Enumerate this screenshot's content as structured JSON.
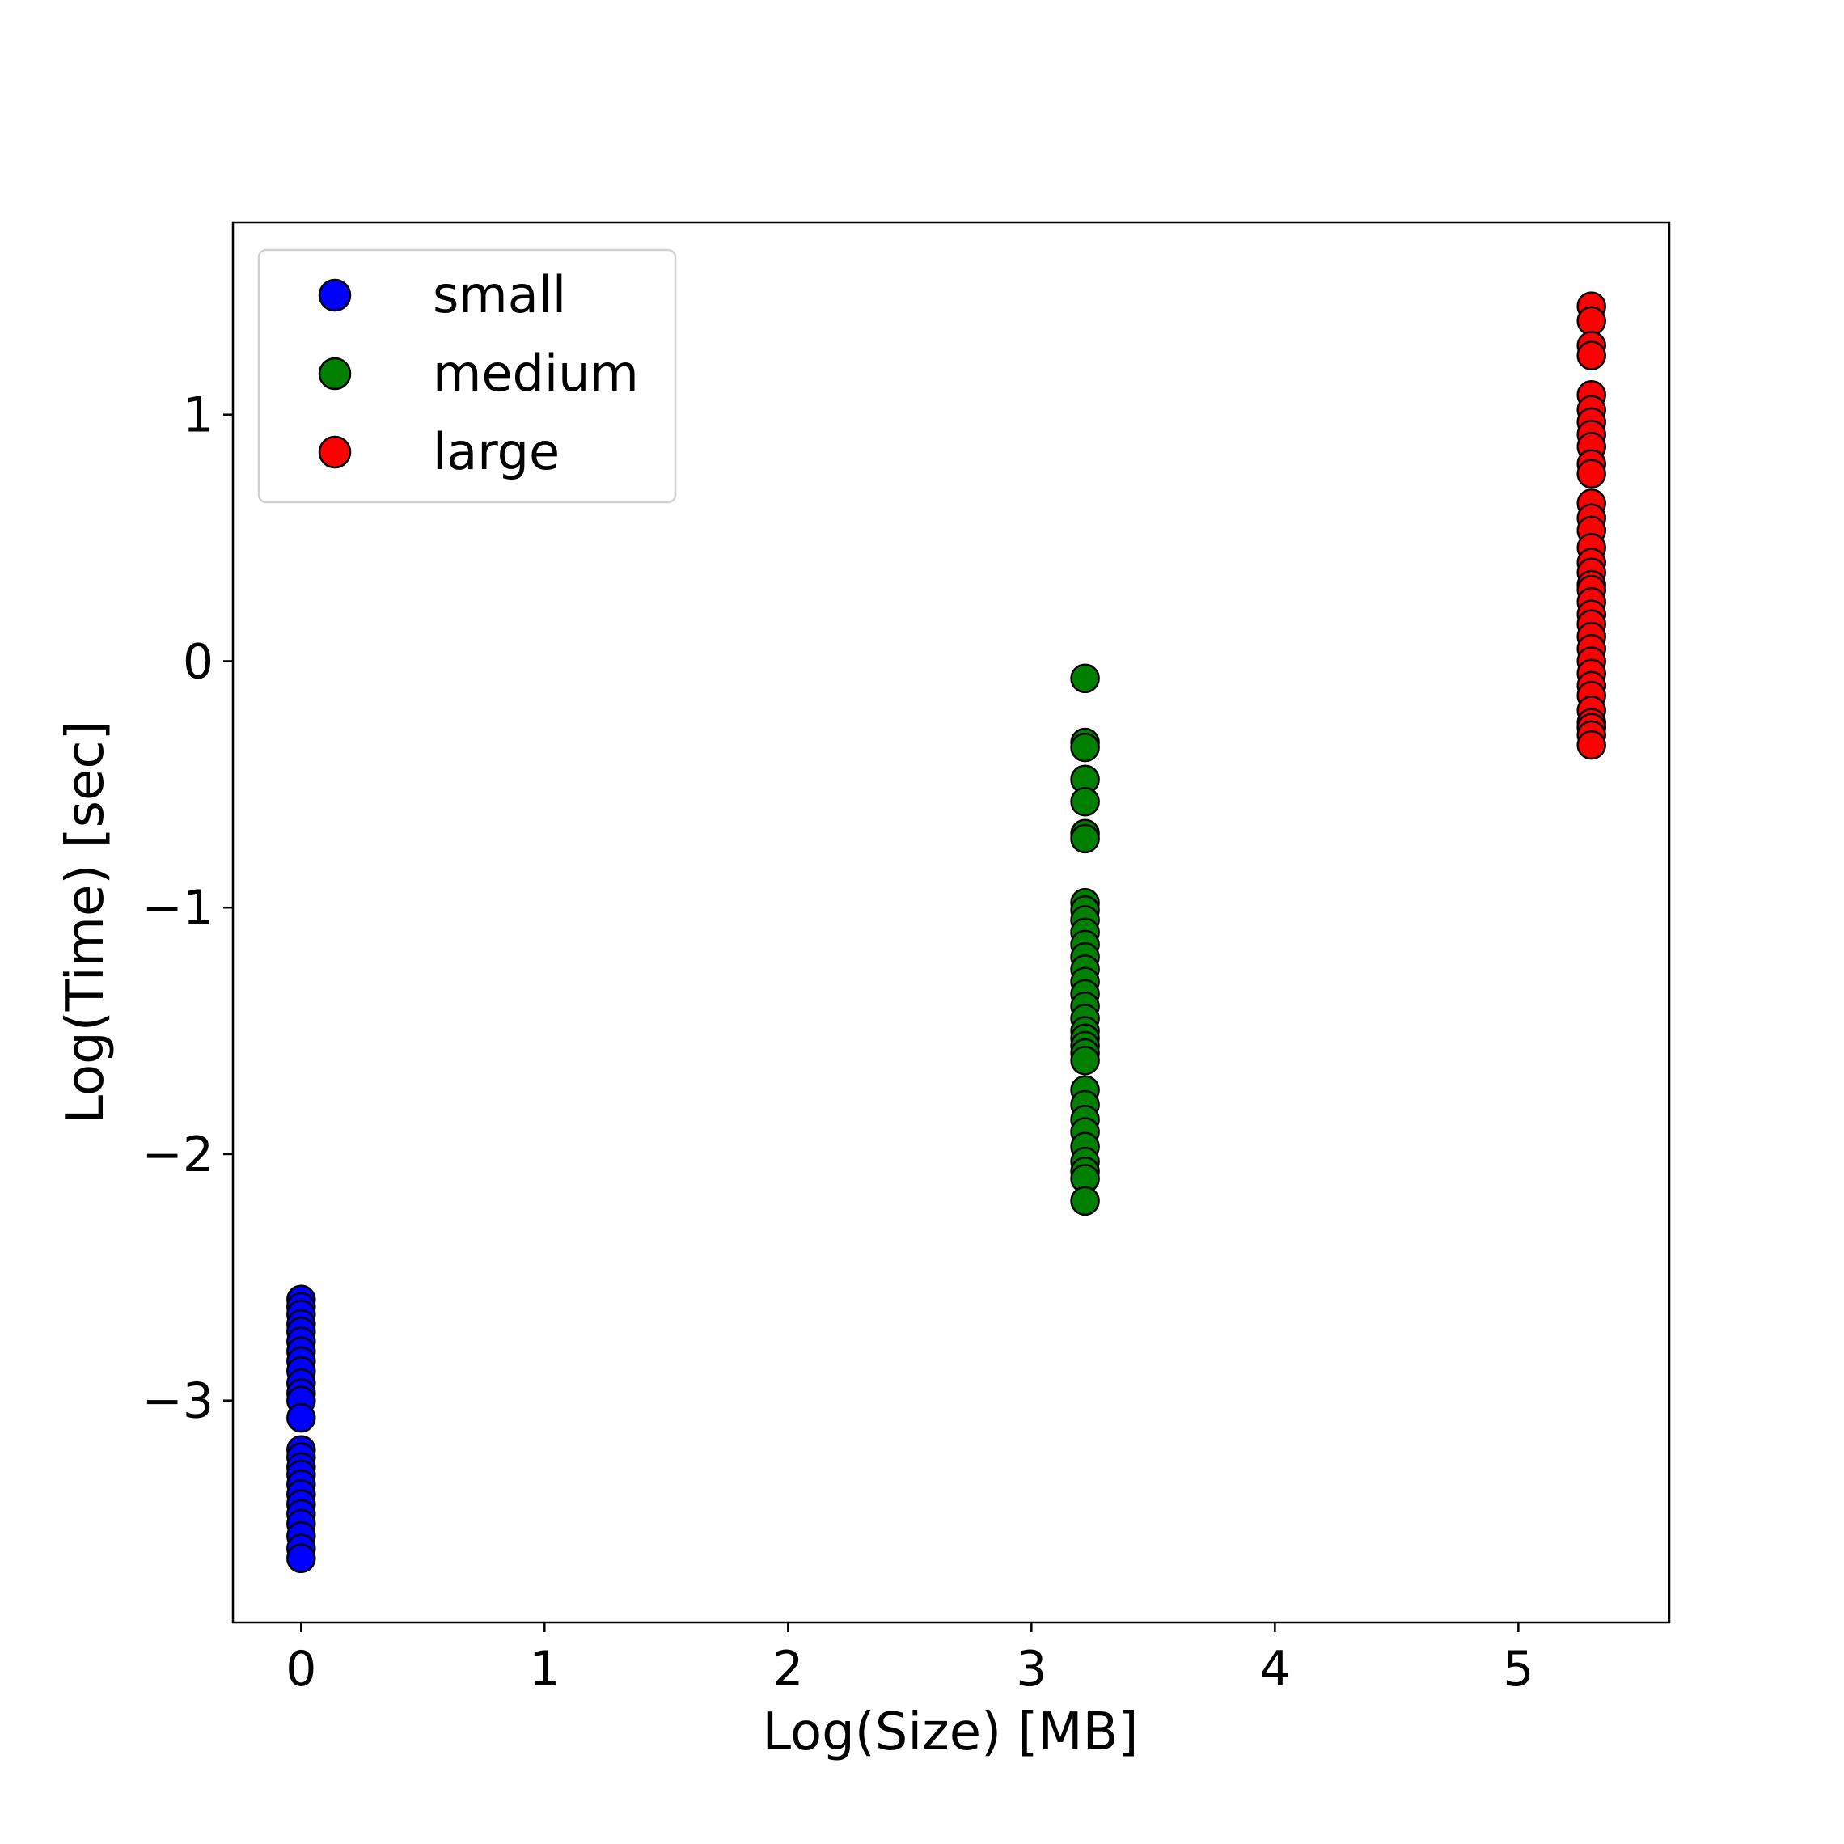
{
  "chart_data": {
    "type": "scatter",
    "title": "",
    "xlabel": "Log(Size) [MB]",
    "ylabel": "Log(Time) [sec]",
    "xlim": [
      -0.28,
      5.62
    ],
    "ylim": [
      -3.9,
      1.78
    ],
    "xticks": [
      0,
      1,
      2,
      3,
      4,
      5
    ],
    "xtick_labels": [
      "0",
      "1",
      "2",
      "3",
      "4",
      "5"
    ],
    "yticks": [
      -3,
      -2,
      -1,
      0,
      1
    ],
    "ytick_labels": [
      "−3",
      "−2",
      "−1",
      "0",
      "1"
    ],
    "grid": false,
    "legend_position": "upper-left",
    "series": [
      {
        "name": "small",
        "color": "#0000ff",
        "x": 0,
        "y": [
          -2.59,
          -2.62,
          -2.65,
          -2.69,
          -2.72,
          -2.76,
          -2.8,
          -2.84,
          -2.88,
          -2.93,
          -2.97,
          -3.0,
          -3.07,
          -3.2,
          -3.23,
          -3.27,
          -3.3,
          -3.34,
          -3.38,
          -3.42,
          -3.46,
          -3.5,
          -3.55,
          -3.6,
          -3.64
        ]
      },
      {
        "name": "medium",
        "color": "#008000",
        "x": 3.22,
        "y": [
          -0.07,
          -0.33,
          -0.35,
          -0.48,
          -0.57,
          -0.7,
          -0.72,
          -0.98,
          -1.01,
          -1.05,
          -1.1,
          -1.15,
          -1.2,
          -1.25,
          -1.3,
          -1.35,
          -1.4,
          -1.45,
          -1.5,
          -1.53,
          -1.56,
          -1.59,
          -1.62,
          -1.74,
          -1.8,
          -1.86,
          -1.91,
          -1.97,
          -2.03,
          -2.07,
          -2.1,
          -2.19
        ]
      },
      {
        "name": "large",
        "color": "#ff0000",
        "x": 5.3,
        "y": [
          1.44,
          1.38,
          1.28,
          1.24,
          1.08,
          1.02,
          0.97,
          0.92,
          0.87,
          0.8,
          0.76,
          0.64,
          0.58,
          0.53,
          0.46,
          0.4,
          0.36,
          0.31,
          0.29,
          0.24,
          0.19,
          0.15,
          0.1,
          0.05,
          0.0,
          -0.05,
          -0.1,
          -0.14,
          -0.2,
          -0.25,
          -0.27,
          -0.3,
          -0.34
        ]
      }
    ]
  }
}
